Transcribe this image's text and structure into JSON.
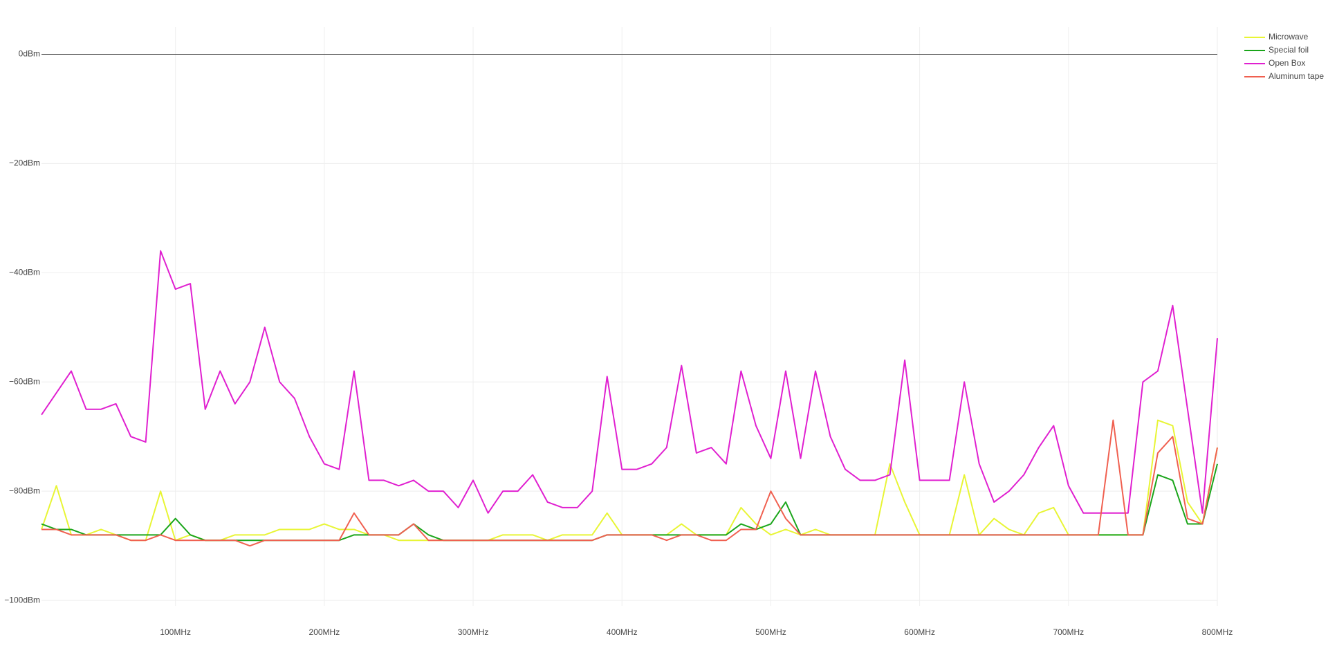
{
  "chart_data": {
    "type": "line",
    "x": [
      10,
      20,
      30,
      40,
      50,
      60,
      70,
      80,
      90,
      100,
      110,
      120,
      130,
      140,
      150,
      160,
      170,
      180,
      190,
      200,
      210,
      220,
      230,
      240,
      250,
      260,
      270,
      280,
      290,
      300,
      310,
      320,
      330,
      340,
      350,
      360,
      370,
      380,
      390,
      400,
      410,
      420,
      430,
      440,
      450,
      460,
      470,
      480,
      490,
      500,
      510,
      520,
      530,
      540,
      550,
      560,
      570,
      580,
      590,
      600,
      610,
      620,
      630,
      640,
      650,
      660,
      670,
      680,
      690,
      700,
      710,
      720,
      730,
      740,
      750,
      760,
      770,
      780,
      790,
      800
    ],
    "series": [
      {
        "name": "Microwave",
        "color": "#e8f535",
        "values": [
          -87,
          -79,
          -88,
          -88,
          -87,
          -88,
          -89,
          -89,
          -80,
          -89,
          -88,
          -89,
          -89,
          -88,
          -88,
          -88,
          -87,
          -87,
          -87,
          -86,
          -87,
          -87,
          -88,
          -88,
          -89,
          -89,
          -89,
          -89,
          -89,
          -89,
          -89,
          -88,
          -88,
          -88,
          -89,
          -88,
          -88,
          -88,
          -84,
          -88,
          -88,
          -88,
          -88,
          -86,
          -88,
          -88,
          -88,
          -83,
          -86,
          -88,
          -87,
          -88,
          -87,
          -88,
          -88,
          -88,
          -88,
          -75,
          -82,
          -88,
          -88,
          -88,
          -77,
          -88,
          -85,
          -87,
          -88,
          -84,
          -83,
          -88,
          -88,
          -88,
          -88,
          -88,
          -88,
          -67,
          -68,
          -82,
          -86,
          -72
        ]
      },
      {
        "name": "Special foil",
        "color": "#1aa51a",
        "values": [
          -86,
          -87,
          -87,
          -88,
          -88,
          -88,
          -88,
          -88,
          -88,
          -85,
          -88,
          -89,
          -89,
          -89,
          -89,
          -89,
          -89,
          -89,
          -89,
          -89,
          -89,
          -88,
          -88,
          -88,
          -88,
          -86,
          -88,
          -89,
          -89,
          -89,
          -89,
          -89,
          -89,
          -89,
          -89,
          -89,
          -89,
          -89,
          -88,
          -88,
          -88,
          -88,
          -88,
          -88,
          -88,
          -88,
          -88,
          -86,
          -87,
          -86,
          -82,
          -88,
          -88,
          -88,
          -88,
          -88,
          -88,
          -88,
          -88,
          -88,
          -88,
          -88,
          -88,
          -88,
          -88,
          -88,
          -88,
          -88,
          -88,
          -88,
          -88,
          -88,
          -88,
          -88,
          -88,
          -77,
          -78,
          -86,
          -86,
          -75
        ]
      },
      {
        "name": "Open Box",
        "color": "#e020d0",
        "values": [
          -66,
          -62,
          -58,
          -65,
          -65,
          -64,
          -70,
          -71,
          -36,
          -43,
          -42,
          -65,
          -58,
          -64,
          -60,
          -50,
          -60,
          -63,
          -70,
          -75,
          -76,
          -58,
          -78,
          -78,
          -79,
          -78,
          -80,
          -80,
          -83,
          -78,
          -84,
          -80,
          -80,
          -77,
          -82,
          -83,
          -83,
          -80,
          -59,
          -76,
          -76,
          -75,
          -72,
          -57,
          -73,
          -72,
          -75,
          -58,
          -68,
          -74,
          -58,
          -74,
          -58,
          -70,
          -76,
          -78,
          -78,
          -77,
          -56,
          -78,
          -78,
          -78,
          -60,
          -75,
          -82,
          -80,
          -77,
          -72,
          -68,
          -79,
          -84,
          -84,
          -84,
          -84,
          -60,
          -58,
          -46,
          -65,
          -84,
          -52
        ]
      },
      {
        "name": "Aluminum tape",
        "color": "#f06050",
        "values": [
          -87,
          -87,
          -88,
          -88,
          -88,
          -88,
          -89,
          -89,
          -88,
          -89,
          -89,
          -89,
          -89,
          -89,
          -90,
          -89,
          -89,
          -89,
          -89,
          -89,
          -89,
          -84,
          -88,
          -88,
          -88,
          -86,
          -89,
          -89,
          -89,
          -89,
          -89,
          -89,
          -89,
          -89,
          -89,
          -89,
          -89,
          -89,
          -88,
          -88,
          -88,
          -88,
          -89,
          -88,
          -88,
          -89,
          -89,
          -87,
          -87,
          -80,
          -85,
          -88,
          -88,
          -88,
          -88,
          -88,
          -88,
          -88,
          -88,
          -88,
          -88,
          -88,
          -88,
          -88,
          -88,
          -88,
          -88,
          -88,
          -88,
          -88,
          -88,
          -88,
          -67,
          -88,
          -88,
          -73,
          -70,
          -85,
          -86,
          -72
        ]
      }
    ],
    "xlim": [
      10,
      800
    ],
    "ylim": [
      -101,
      5
    ],
    "xticks": [
      {
        "value": 100,
        "label": "100MHz"
      },
      {
        "value": 200,
        "label": "200MHz"
      },
      {
        "value": 300,
        "label": "300MHz"
      },
      {
        "value": 400,
        "label": "400MHz"
      },
      {
        "value": 500,
        "label": "500MHz"
      },
      {
        "value": 600,
        "label": "600MHz"
      },
      {
        "value": 700,
        "label": "700MHz"
      },
      {
        "value": 800,
        "label": "800MHz"
      }
    ],
    "yticks": [
      {
        "value": -100,
        "label": "−100dBm"
      },
      {
        "value": -80,
        "label": "−80dBm"
      },
      {
        "value": -60,
        "label": "−60dBm"
      },
      {
        "value": -40,
        "label": "−40dBm"
      },
      {
        "value": -20,
        "label": "−20dBm"
      },
      {
        "value": 0,
        "label": "0dBm"
      }
    ],
    "grid": true,
    "legend": "top-right"
  }
}
